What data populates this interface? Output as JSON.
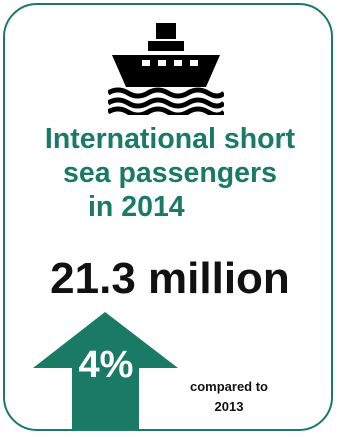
{
  "icon": "ship-icon",
  "colors": {
    "accent": "#1a7a66",
    "text": "#111111",
    "background": "#ffffff"
  },
  "title": {
    "line1": "International short",
    "line2": "sea passengers",
    "line3": "in 2014"
  },
  "value": "21.3 million",
  "change": {
    "icon": "up-arrow-icon",
    "percent": "4%",
    "compared_line1": "compared to",
    "compared_line2": "2013"
  }
}
